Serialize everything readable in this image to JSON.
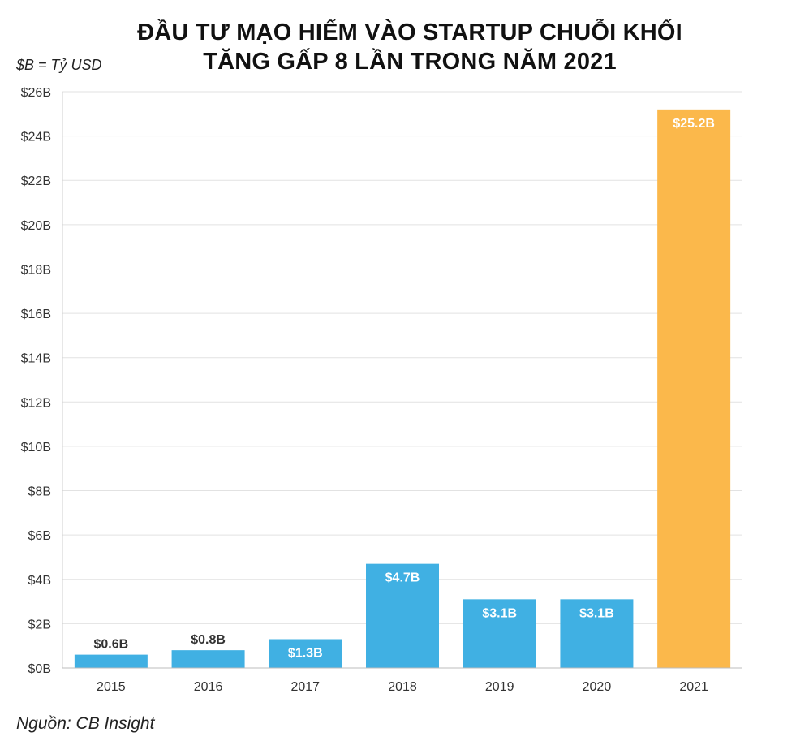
{
  "chart_data": {
    "type": "bar",
    "title_lines": [
      "ĐẦU TƯ MẠO HIỂM VÀO STARTUP CHUỖI KHỐI",
      "TĂNG GẤP 8 LẦN TRONG NĂM 2021"
    ],
    "unit_note": "$B = Tỷ USD",
    "source": "Nguồn: CB Insight",
    "categories": [
      "2015",
      "2016",
      "2017",
      "2018",
      "2019",
      "2020",
      "2021"
    ],
    "values": [
      0.6,
      0.8,
      1.3,
      4.7,
      3.1,
      3.1,
      25.2
    ],
    "data_labels": [
      "$0.6B",
      "$0.8B",
      "$1.3B",
      "$4.7B",
      "$3.1B",
      "$3.1B",
      "$25.2B"
    ],
    "ylim": [
      0,
      26
    ],
    "yticks": [
      0,
      2,
      4,
      6,
      8,
      10,
      12,
      14,
      16,
      18,
      20,
      22,
      24,
      26
    ],
    "ytick_labels": [
      "$0B",
      "$2B",
      "$4B",
      "$6B",
      "$8B",
      "$10B",
      "$12B",
      "$14B",
      "$16B",
      "$18B",
      "$20B",
      "$22B",
      "$24B",
      "$26B"
    ],
    "grid": true,
    "colors": {
      "default_bar": "#40b0e3",
      "highlight_bar": "#fbb84b",
      "grid": "#e2e2e2",
      "label_inside": "#ffffff",
      "label_outside": "#333333"
    },
    "highlight_index": 6
  }
}
